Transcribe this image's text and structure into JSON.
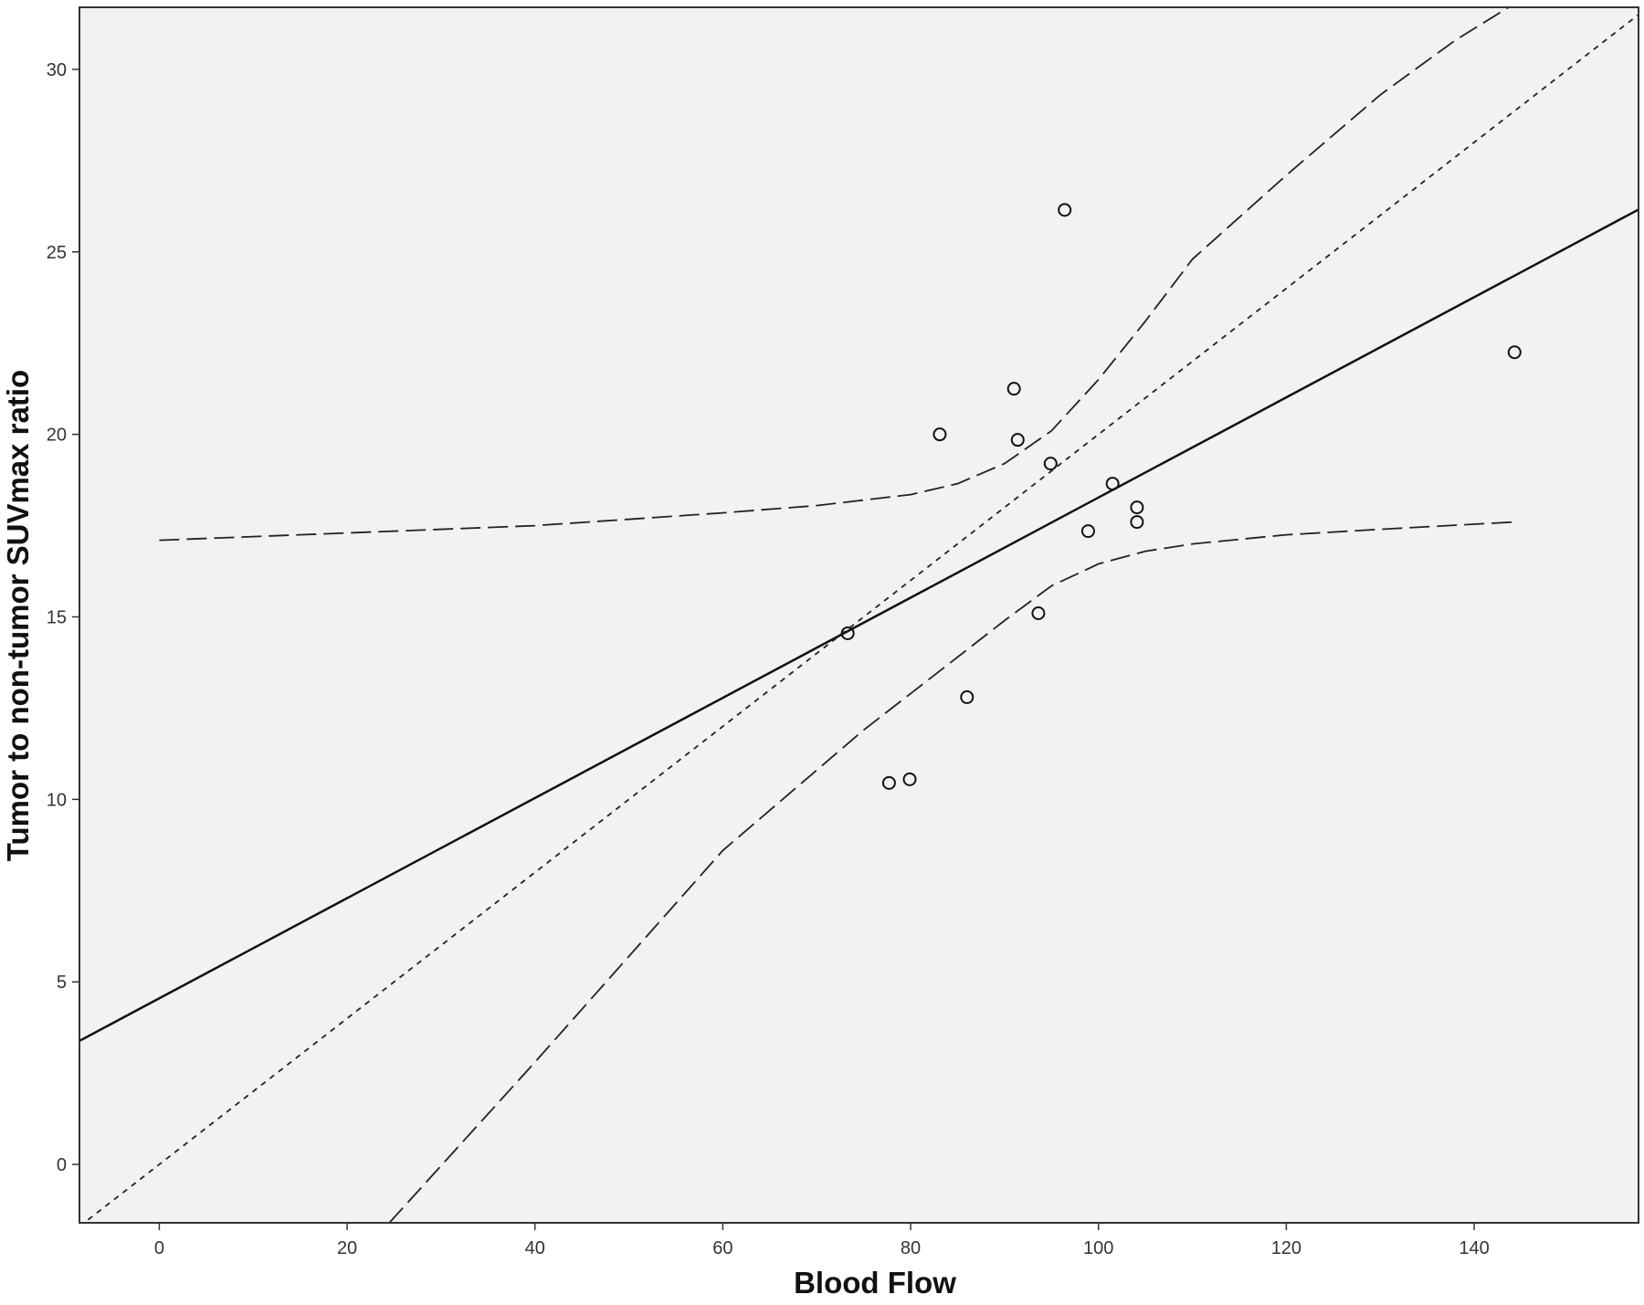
{
  "chart_data": {
    "type": "scatter",
    "title": "",
    "xlabel": "Blood Flow",
    "ylabel": "Tumor to non-tumor SUVmax ratio",
    "xlim": [
      -8.5,
      157.5
    ],
    "ylim": [
      -1.6,
      31.7
    ],
    "xticks": [
      0,
      20,
      40,
      60,
      80,
      100,
      120,
      140
    ],
    "yticks": [
      0,
      5,
      10,
      15,
      20,
      25,
      30
    ],
    "grid": false,
    "legend": "none",
    "plot_background": "#f2f2f2",
    "points": [
      {
        "x": 73.3,
        "y": 14.55
      },
      {
        "x": 77.7,
        "y": 10.45
      },
      {
        "x": 79.9,
        "y": 10.55
      },
      {
        "x": 83.1,
        "y": 20.0
      },
      {
        "x": 86.0,
        "y": 12.8
      },
      {
        "x": 91.0,
        "y": 21.25
      },
      {
        "x": 91.4,
        "y": 19.85
      },
      {
        "x": 93.6,
        "y": 15.1
      },
      {
        "x": 94.9,
        "y": 19.2
      },
      {
        "x": 96.4,
        "y": 26.15
      },
      {
        "x": 98.9,
        "y": 17.35
      },
      {
        "x": 101.5,
        "y": 18.65
      },
      {
        "x": 104.1,
        "y": 18.0
      },
      {
        "x": 104.1,
        "y": 17.6
      },
      {
        "x": 144.3,
        "y": 22.25
      }
    ],
    "fit_line": {
      "intercept": 4.55,
      "slope": 0.1372
    },
    "identity_line": {
      "intercept": 0,
      "slope": 0.2
    },
    "confidence_upper": [
      {
        "x": 0,
        "y": 17.1
      },
      {
        "x": 20,
        "y": 17.3
      },
      {
        "x": 40,
        "y": 17.5
      },
      {
        "x": 60,
        "y": 17.85
      },
      {
        "x": 70,
        "y": 18.05
      },
      {
        "x": 80,
        "y": 18.35
      },
      {
        "x": 85,
        "y": 18.65
      },
      {
        "x": 90,
        "y": 19.2
      },
      {
        "x": 95,
        "y": 20.1
      },
      {
        "x": 100,
        "y": 21.5
      },
      {
        "x": 105,
        "y": 23.1
      },
      {
        "x": 110,
        "y": 24.8
      },
      {
        "x": 120,
        "y": 27.1
      },
      {
        "x": 130,
        "y": 29.3
      },
      {
        "x": 138,
        "y": 30.8
      },
      {
        "x": 144.3,
        "y": 31.8
      }
    ],
    "confidence_lower": [
      {
        "x": 24.5,
        "y": -1.6
      },
      {
        "x": 40,
        "y": 2.8
      },
      {
        "x": 60,
        "y": 8.6
      },
      {
        "x": 75,
        "y": 11.9
      },
      {
        "x": 80,
        "y": 12.9
      },
      {
        "x": 85,
        "y": 13.9
      },
      {
        "x": 90,
        "y": 14.9
      },
      {
        "x": 95,
        "y": 15.85
      },
      {
        "x": 100,
        "y": 16.45
      },
      {
        "x": 105,
        "y": 16.8
      },
      {
        "x": 110,
        "y": 17.0
      },
      {
        "x": 120,
        "y": 17.25
      },
      {
        "x": 130,
        "y": 17.4
      },
      {
        "x": 144.3,
        "y": 17.6
      }
    ]
  }
}
